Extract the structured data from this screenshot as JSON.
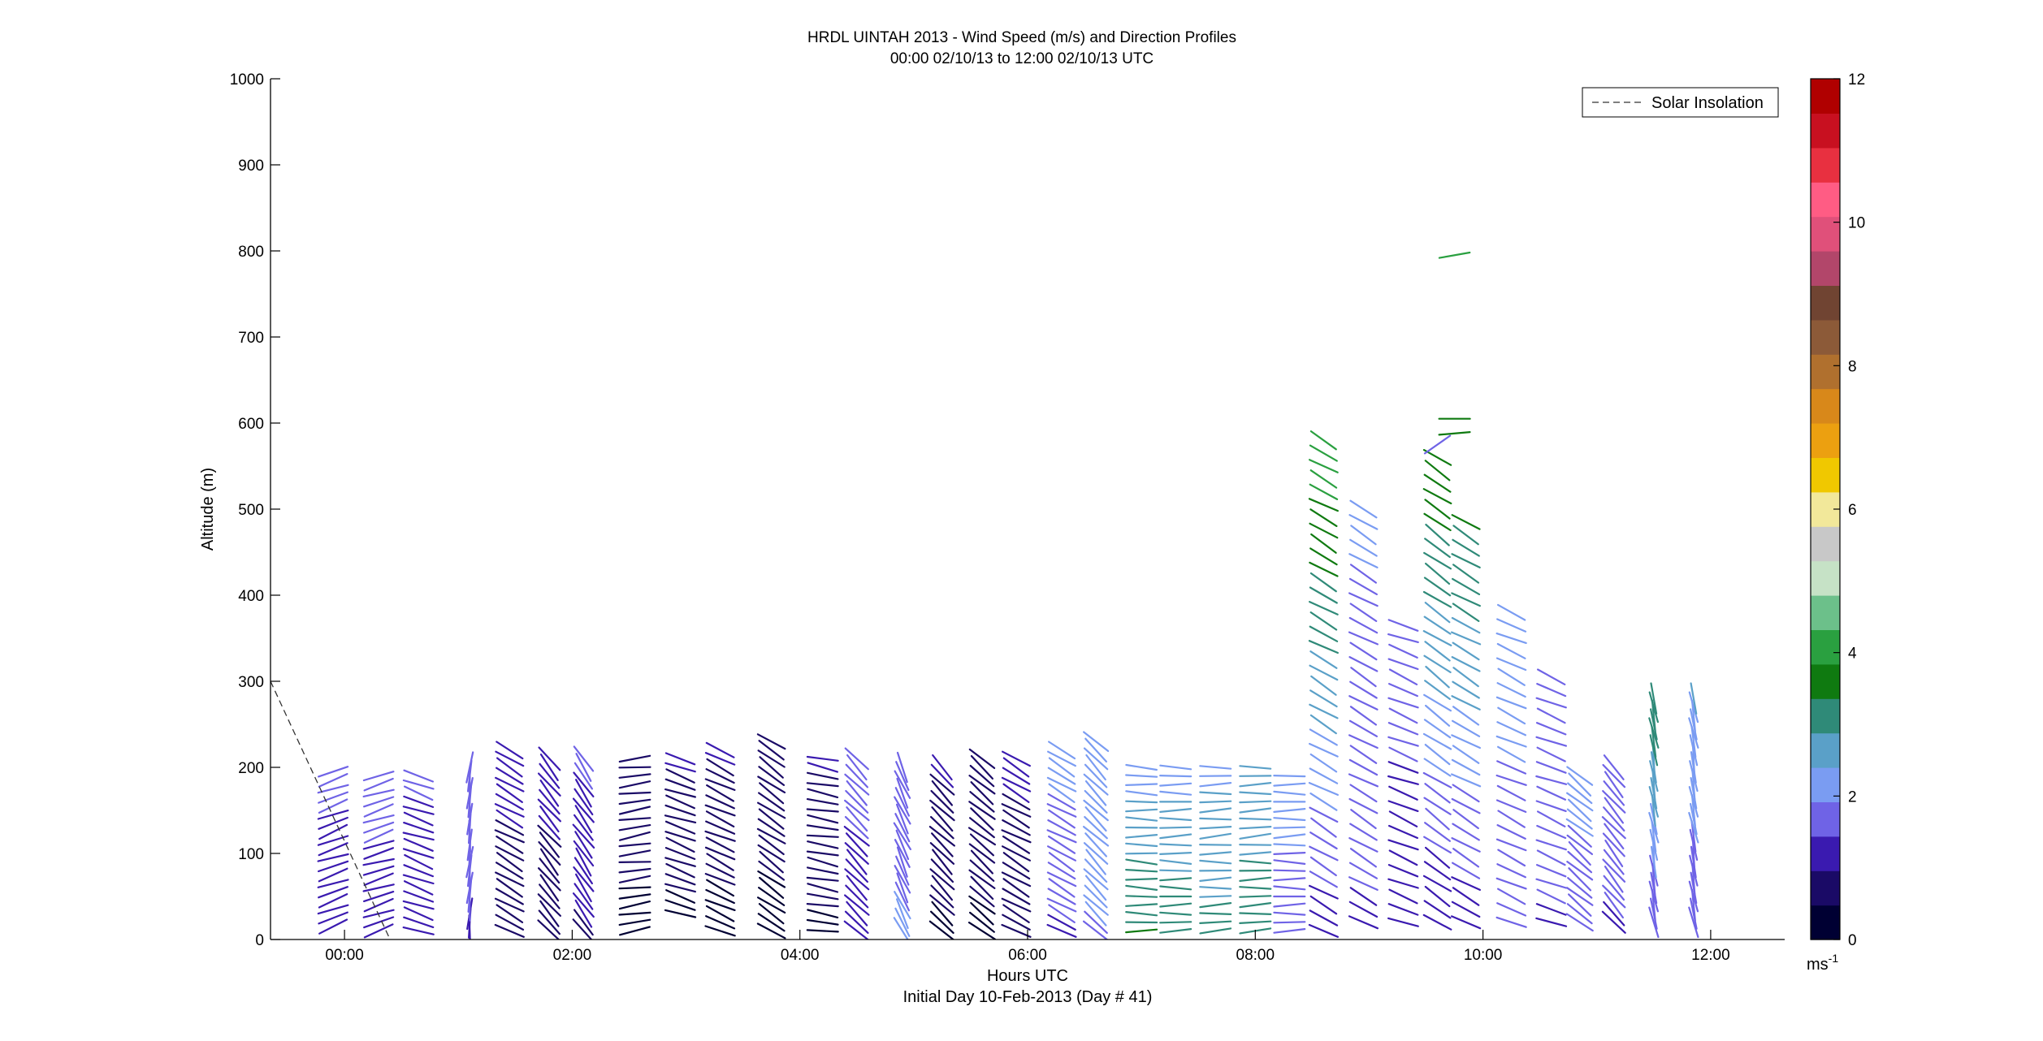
{
  "chart_data": {
    "type": "wind-barb-profile",
    "title": "HRDL UINTAH 2013 - Wind Speed (m/s) and Direction Profiles",
    "subtitle": "00:00 02/10/13 to 12:00 02/10/13  UTC",
    "xlabel": "Hours UTC",
    "footnote": "Initial Day 10-Feb-2013 (Day # 41)",
    "ylabel": "Altitude (m)",
    "xlim": [
      -0.65,
      12.65
    ],
    "ylim": [
      0,
      1000
    ],
    "xticks": [
      0,
      2,
      4,
      6,
      8,
      10,
      12
    ],
    "xtick_labels": [
      "00:00",
      "02:00",
      "04:00",
      "06:00",
      "08:00",
      "10:00",
      "12:00"
    ],
    "yticks": [
      0,
      100,
      200,
      300,
      400,
      500,
      600,
      700,
      800,
      900,
      1000
    ],
    "ytick_labels": [
      "0",
      "100",
      "200",
      "300",
      "400",
      "500",
      "600",
      "700",
      "800",
      "900",
      "1000"
    ],
    "legend": {
      "entries": [
        "Solar Insolation"
      ],
      "position": "top-right",
      "line_style": "dashed"
    },
    "colorbar": {
      "unit_label": "ms",
      "unit_exponent": "-1",
      "range": [
        0,
        12
      ],
      "ticks": [
        0,
        2,
        4,
        6,
        8,
        10,
        12
      ],
      "tick_labels": [
        "0",
        "2",
        "4",
        "6",
        "8",
        "10",
        "12"
      ],
      "colors": [
        "#000033",
        "#1a0a66",
        "#3a1ab0",
        "#6f63e6",
        "#7a9cf2",
        "#5aa0c8",
        "#2f8a78",
        "#0f7a10",
        "#2aa040",
        "#6cc08a",
        "#c6e2c6",
        "#c8c8c8",
        "#f2e89a",
        "#f0c800",
        "#eca010",
        "#d8881a",
        "#b0702e",
        "#8c5a38",
        "#704432",
        "#b2466a",
        "#e0507a",
        "#ff5c84",
        "#e83040",
        "#c81020",
        "#b00000"
      ]
    },
    "solar_insolation_line": [
      [
        -0.65,
        300
      ],
      [
        0.4,
        0
      ]
    ],
    "profiles": [
      {
        "t": -0.1,
        "z0": 15,
        "z1": 190,
        "dz": 10,
        "dir": 250,
        "s0": 1.0,
        "s1": 1.6
      },
      {
        "t": 0.3,
        "z0": 10,
        "z1": 185,
        "dz": 10,
        "dir": 252,
        "s0": 1.2,
        "s1": 1.6
      },
      {
        "t": 0.65,
        "z0": 10,
        "z1": 185,
        "dz": 10,
        "dir": 290,
        "s0": 1.1,
        "s1": 1.5
      },
      {
        "t": 1.1,
        "z0": 10,
        "z1": 200,
        "dz": 10,
        "dir": 185,
        "s0": 1.4,
        "s1": 1.7
      },
      {
        "t": 1.45,
        "z0": 10,
        "z1": 215,
        "dz": 10,
        "dir": 300,
        "s0": 0.6,
        "s1": 1.2
      },
      {
        "t": 1.8,
        "z0": 10,
        "z1": 210,
        "dz": 10,
        "dir": 320,
        "s0": 0.5,
        "s1": 1.3
      },
      {
        "t": 2.1,
        "z0": 10,
        "z1": 210,
        "dz": 10,
        "dir": 325,
        "s0": 0.9,
        "s1": 1.5
      },
      {
        "t": 2.55,
        "z0": 10,
        "z1": 205,
        "dz": 10,
        "dir": 262,
        "s0": 0.3,
        "s1": 0.9
      },
      {
        "t": 2.95,
        "z0": 30,
        "z1": 210,
        "dz": 10,
        "dir": 290,
        "s0": 0.4,
        "s1": 1.0
      },
      {
        "t": 3.3,
        "z0": 10,
        "z1": 220,
        "dz": 10,
        "dir": 295,
        "s0": 0.3,
        "s1": 1.0
      },
      {
        "t": 3.75,
        "z0": 10,
        "z1": 225,
        "dz": 10,
        "dir": 305,
        "s0": 0.3,
        "s1": 0.9
      },
      {
        "t": 4.2,
        "z0": 10,
        "z1": 210,
        "dz": 10,
        "dir": 280,
        "s0": 0.4,
        "s1": 1.0
      },
      {
        "t": 4.5,
        "z0": 10,
        "z1": 205,
        "dz": 10,
        "dir": 315,
        "s0": 1.2,
        "s1": 1.6
      },
      {
        "t": 4.9,
        "z0": 10,
        "z1": 200,
        "dz": 10,
        "dir": 335,
        "s0": 2.0,
        "s1": 1.6
      },
      {
        "t": 5.25,
        "z0": 10,
        "z1": 200,
        "dz": 10,
        "dir": 315,
        "s0": 0.4,
        "s1": 1.0
      },
      {
        "t": 5.6,
        "z0": 10,
        "z1": 210,
        "dz": 10,
        "dir": 310,
        "s0": 0.4,
        "s1": 0.9
      },
      {
        "t": 5.9,
        "z0": 10,
        "z1": 205,
        "dz": 10,
        "dir": 300,
        "s0": 0.5,
        "s1": 1.1
      },
      {
        "t": 6.3,
        "z0": 10,
        "z1": 215,
        "dz": 10,
        "dir": 300,
        "s0": 1.4,
        "s1": 2.1
      },
      {
        "t": 6.6,
        "z0": 10,
        "z1": 225,
        "dz": 10,
        "dir": 315,
        "s0": 1.9,
        "s1": 2.2
      },
      {
        "t": 7.0,
        "z0": 10,
        "z1": 200,
        "dz": 10,
        "dir": 272,
        "s0": 3.4,
        "s1": 2.2
      },
      {
        "t": 7.3,
        "z0": 10,
        "z1": 200,
        "dz": 10,
        "dir": 270,
        "s0": 3.2,
        "s1": 2.2
      },
      {
        "t": 7.65,
        "z0": 10,
        "z1": 200,
        "dz": 10,
        "dir": 268,
        "s0": 3.0,
        "s1": 2.3
      },
      {
        "t": 8.0,
        "z0": 10,
        "z1": 200,
        "dz": 10,
        "dir": 268,
        "s0": 3.3,
        "s1": 2.4
      },
      {
        "t": 8.3,
        "z0": 10,
        "z1": 190,
        "dz": 10,
        "dir": 270,
        "s0": 1.6,
        "s1": 2.2
      },
      {
        "t": 8.6,
        "z0": 10,
        "z1": 575,
        "dz": 15,
        "dir": 300,
        "s0": 1.2,
        "s1": 4.2
      },
      {
        "t": 8.95,
        "z0": 20,
        "z1": 505,
        "dz": 15,
        "dir": 300,
        "s0": 1.4,
        "s1": 2.0
      },
      {
        "t": 9.3,
        "z0": 20,
        "z1": 370,
        "dz": 15,
        "dir": 292,
        "s0": 1.0,
        "s1": 1.8
      },
      {
        "t": 9.6,
        "z0": 20,
        "z1": 560,
        "dz": 15,
        "dir": 305,
        "s0": 1.0,
        "s1": 3.8
      },
      {
        "t": 9.85,
        "z0": 20,
        "z1": 480,
        "dz": 15,
        "dir": 300,
        "s0": 1.2,
        "s1": 3.4
      },
      {
        "t": 10.25,
        "z0": 20,
        "z1": 375,
        "dz": 15,
        "dir": 295,
        "s0": 1.6,
        "s1": 2.2
      },
      {
        "t": 10.6,
        "z0": 20,
        "z1": 300,
        "dz": 15,
        "dir": 292,
        "s0": 1.4,
        "s1": 1.8
      },
      {
        "t": 10.85,
        "z0": 20,
        "z1": 185,
        "dz": 10,
        "dir": 310,
        "s0": 1.6,
        "s1": 2.1
      },
      {
        "t": 11.15,
        "z0": 20,
        "z1": 200,
        "dz": 10,
        "dir": 320,
        "s0": 1.4,
        "s1": 1.8
      },
      {
        "t": 11.5,
        "z0": 20,
        "z1": 275,
        "dz": 10,
        "dir": 350,
        "s0": 1.5,
        "s1": 3.3
      },
      {
        "t": 11.85,
        "z0": 20,
        "z1": 275,
        "dz": 10,
        "dir": 350,
        "s0": 1.6,
        "s1": 2.4
      }
    ],
    "isolated_barbs": [
      {
        "t": 9.75,
        "z": 795,
        "dir": 260,
        "s": 4.0
      },
      {
        "t": 9.75,
        "z": 605,
        "dir": 270,
        "s": 3.8
      },
      {
        "t": 9.75,
        "z": 588,
        "dir": 265,
        "s": 3.6
      },
      {
        "t": 9.6,
        "z": 575,
        "dir": 235,
        "s": 1.5
      }
    ]
  }
}
